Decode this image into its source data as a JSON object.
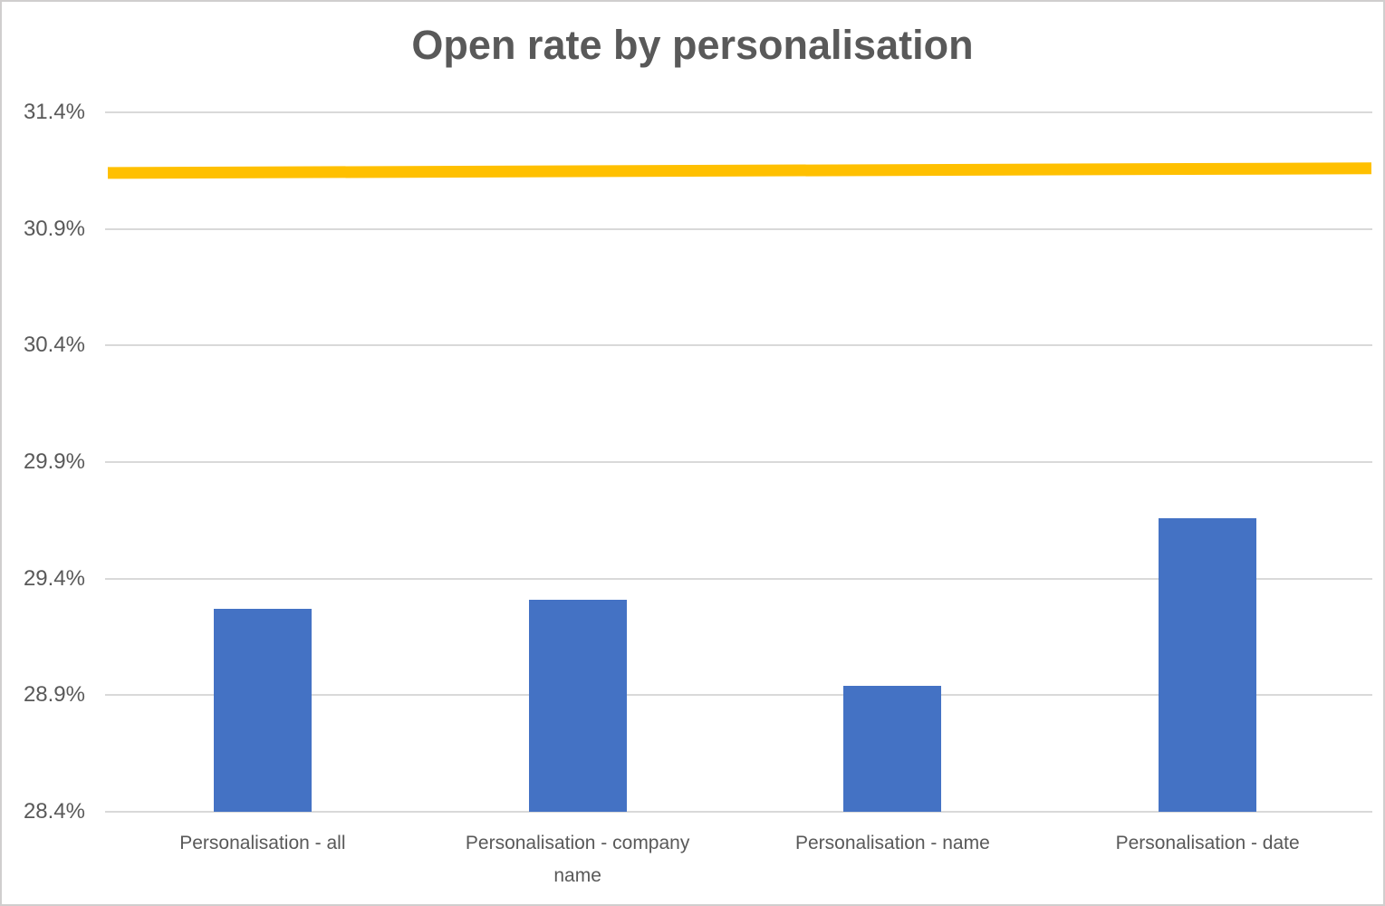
{
  "chart": {
    "title": "Open rate by personalisation"
  },
  "colors": {
    "bar": "#4472C4",
    "line": "#FFC000",
    "text": "#595959",
    "gridline": "#D9D9D9",
    "border": "#D0CECE",
    "background": "#FFFFFF"
  },
  "chart_data": {
    "type": "bar",
    "title": "Open rate by personalisation",
    "categories": [
      "Personalisation - all",
      "Personalisation - company name",
      "Personalisation - name",
      "Personalisation - date"
    ],
    "values": [
      29.27,
      29.31,
      28.94,
      29.66
    ],
    "value_unit": "%",
    "series": [
      {
        "name": "open-rate-bars",
        "type": "bar",
        "values": [
          29.27,
          29.31,
          28.94,
          29.66
        ]
      },
      {
        "name": "reference-line",
        "type": "line",
        "start_value": 31.14,
        "end_value": 31.16
      }
    ],
    "xlabel": "",
    "ylabel": "",
    "ylim": [
      28.4,
      31.4
    ],
    "ytick_step": 0.5,
    "ytick_labels": [
      "28.4%",
      "28.9%",
      "29.4%",
      "29.9%",
      "30.4%",
      "30.9%",
      "31.4%"
    ],
    "grid": true,
    "legend": false
  }
}
